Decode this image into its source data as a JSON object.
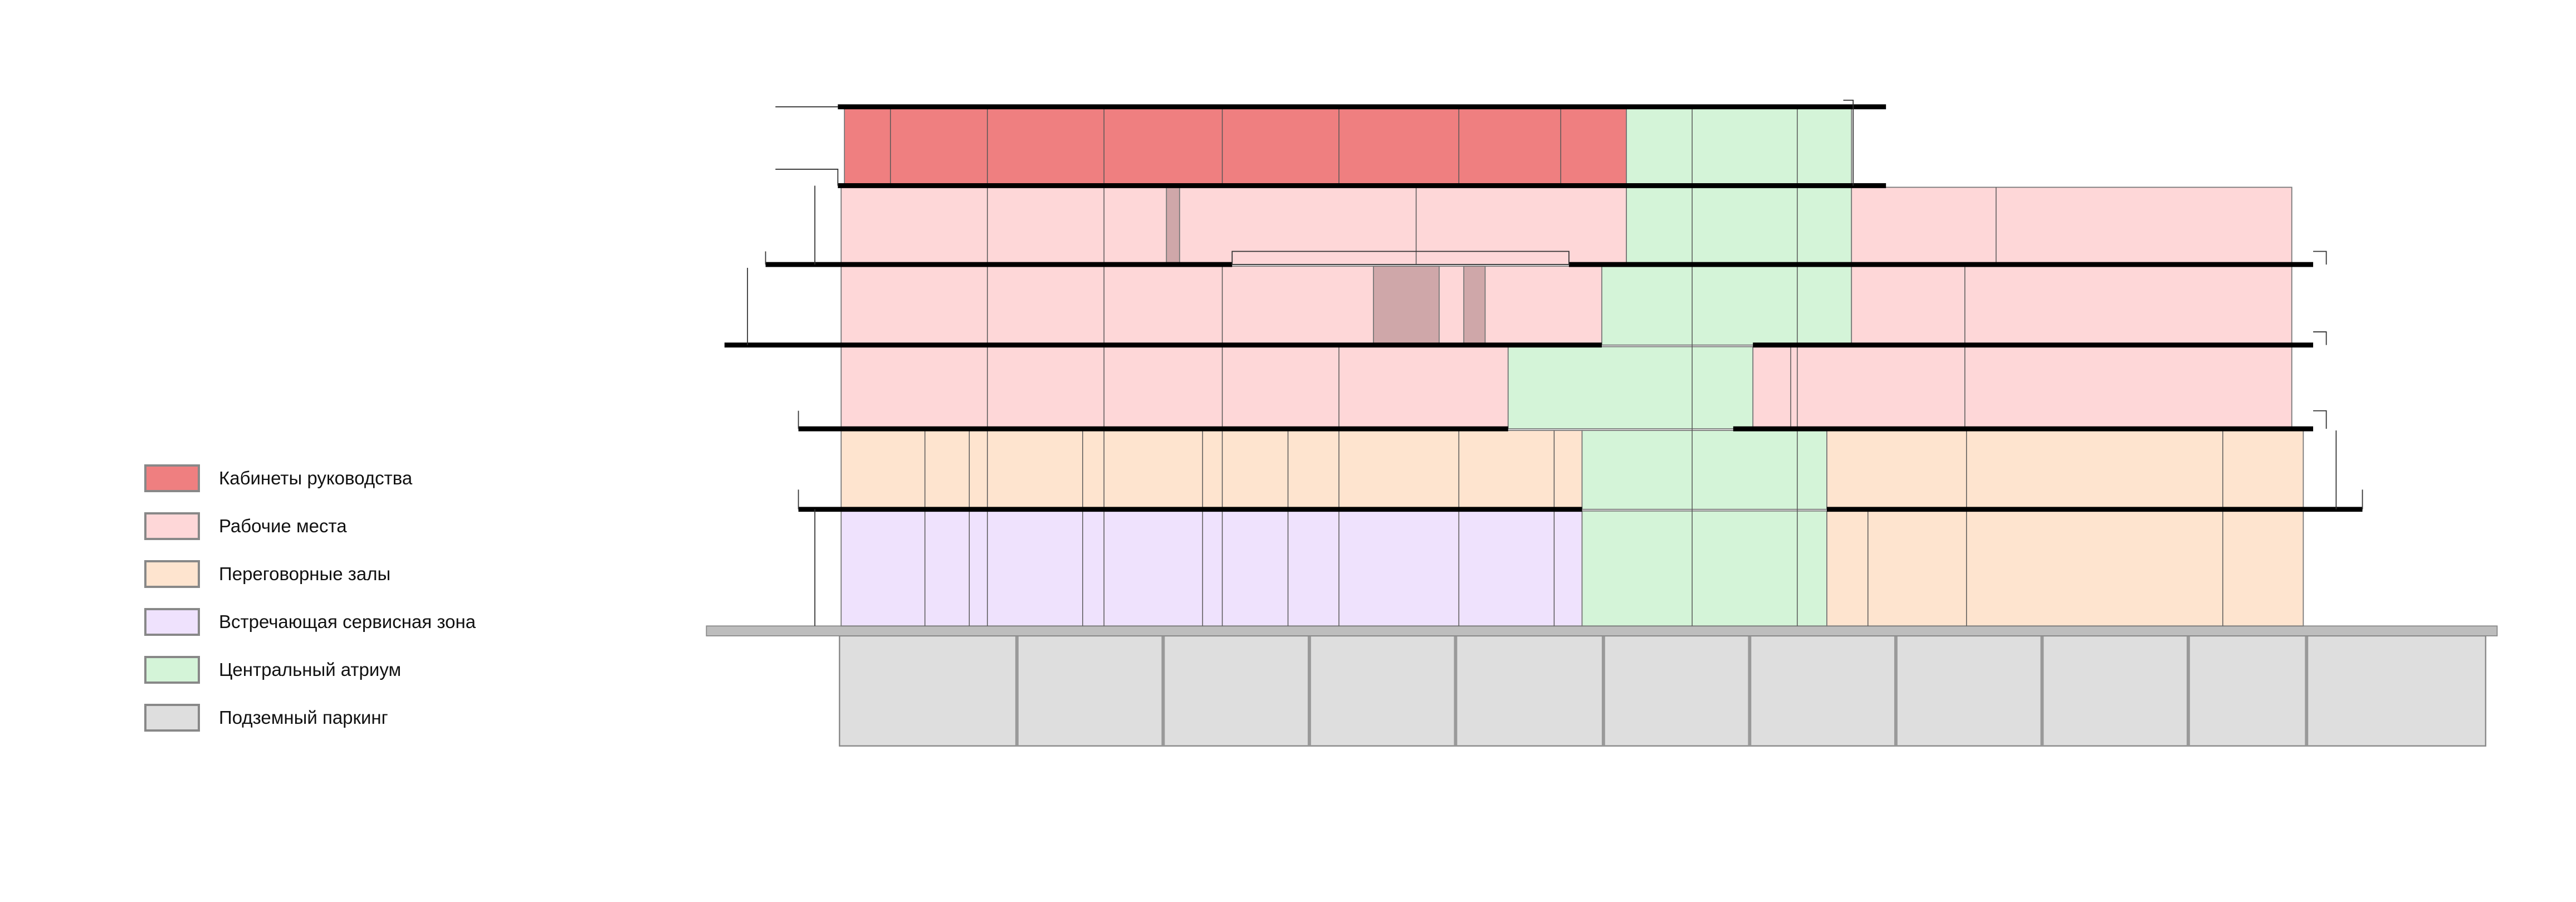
{
  "legend": {
    "items": [
      {
        "label": "Кабинеты руководства",
        "color": "#ef7f80"
      },
      {
        "label": "Рабочие места",
        "color": "#fed7d8"
      },
      {
        "label": "Переговорные залы",
        "color": "#fee4cf"
      },
      {
        "label": "Встречающая сервисная зона",
        "color": "#efe2fd"
      },
      {
        "label": "Центральный атриум",
        "color": "#d4f4d8"
      },
      {
        "label": "Подземный паркинг",
        "color": "#dedede"
      }
    ]
  },
  "colors": {
    "executive": "#ef7f80",
    "workspace": "#fed7d8",
    "meeting": "#fee4cf",
    "service": "#efe2fd",
    "atrium": "#d4f4d8",
    "parking": "#dedede",
    "column": "#cfa7a9",
    "slab": "#000000",
    "ground": "#bdbdbd"
  }
}
